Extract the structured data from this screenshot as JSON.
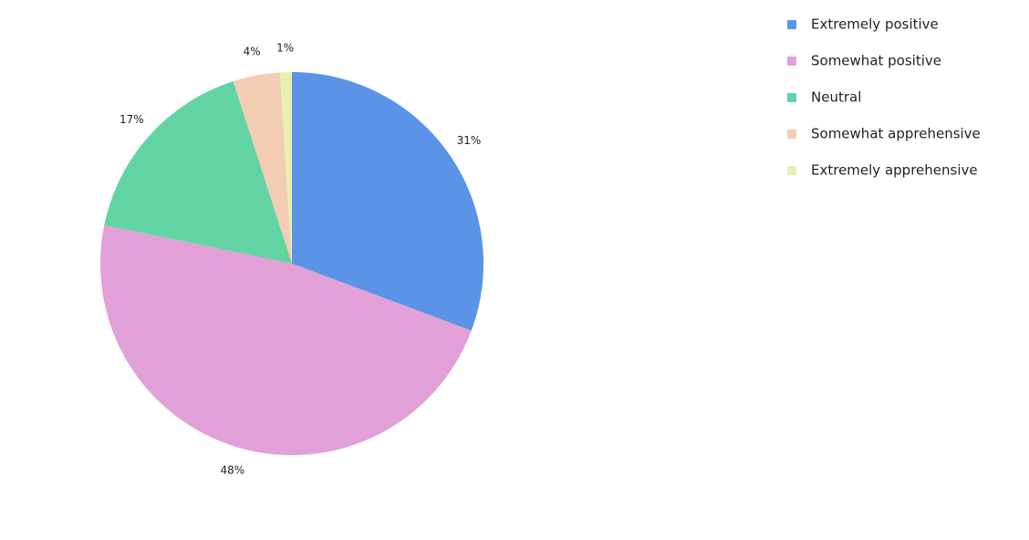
{
  "chart_data": {
    "type": "pie",
    "categories": [
      "Extremely positive",
      "Somewhat positive",
      "Neutral",
      "Somewhat apprehensive",
      "Extremely apprehensive"
    ],
    "values": [
      31,
      48,
      17,
      4,
      1
    ],
    "value_labels": [
      "31%",
      "48%",
      "17%",
      "4%",
      "1%"
    ],
    "colors": [
      "#5b93e6",
      "#e2a0d8",
      "#62d4a4",
      "#f2cdb4",
      "#e8f0b0"
    ],
    "legend": "top-right"
  }
}
